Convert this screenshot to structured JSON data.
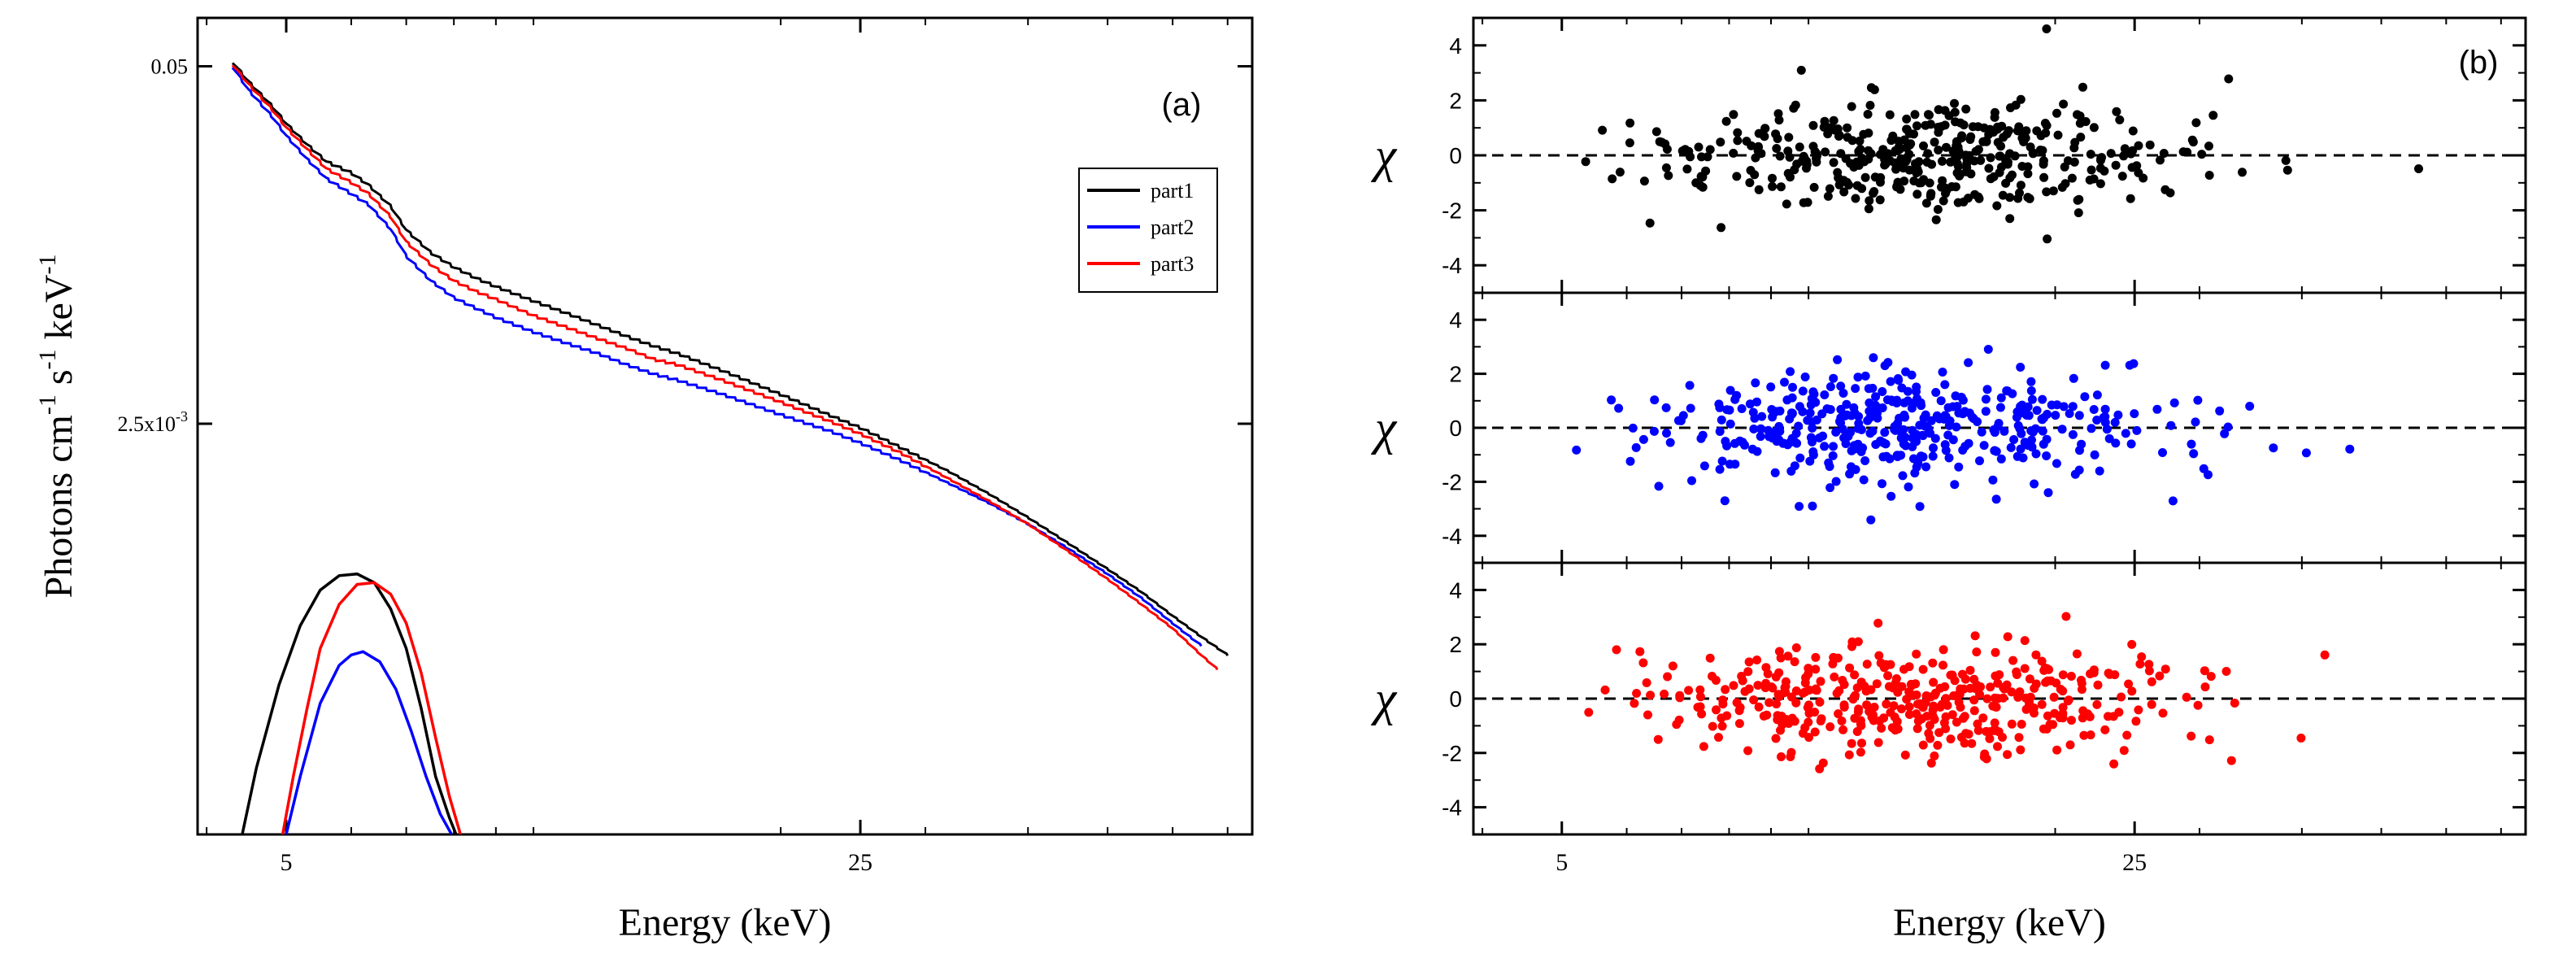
{
  "chart_data": [
    {
      "type": "line",
      "panel_label": "(a)",
      "xlabel": "Energy (keV)",
      "ylabel_parts": [
        "Photons cm",
        "-1",
        " s",
        "-1",
        " keV",
        "-1"
      ],
      "xscale": "log",
      "yscale": "log",
      "xlim": [
        3.9,
        75
      ],
      "ylim": [
        8e-05,
        0.075
      ],
      "xticks": [
        {
          "value": 5,
          "label": "5"
        },
        {
          "value": 25,
          "label": "25"
        }
      ],
      "yticks": [
        {
          "value": 0.05,
          "label": "0.05"
        }
      ],
      "ytick_sci": {
        "value": 0.0025,
        "mantissa": "2.5x10",
        "exponent": "-3"
      },
      "legend": {
        "position": "top-right",
        "entries": [
          {
            "name": "part1",
            "color": "#000000"
          },
          {
            "name": "part2",
            "color": "#0000ff"
          },
          {
            "name": "part3",
            "color": "#ff0000"
          }
        ]
      },
      "series": [
        {
          "name": "part1",
          "component": "total",
          "color": "#000000",
          "x": [
            4.3,
            4.5,
            4.8,
            5.0,
            5.3,
            5.6,
            6.0,
            6.3,
            6.7,
            7.0,
            7.5,
            8.0,
            8.5,
            9.0,
            10,
            11,
            12,
            13,
            14,
            15,
            17,
            20,
            23,
            25,
            28,
            32,
            36,
            40,
            45,
            50,
            55,
            60,
            65,
            70
          ],
          "y": [
            0.052,
            0.044,
            0.036,
            0.031,
            0.026,
            0.0225,
            0.0205,
            0.0185,
            0.0155,
            0.0127,
            0.0105,
            0.0093,
            0.0085,
            0.0079,
            0.007,
            0.0063,
            0.0057,
            0.0052,
            0.0048,
            0.0045,
            0.0039,
            0.0032,
            0.00268,
            0.00242,
            0.00205,
            0.00168,
            0.00138,
            0.00114,
            0.00091,
            0.00074,
            0.00061,
            0.0005,
            0.00042,
            0.00036
          ]
        },
        {
          "name": "part2",
          "component": "total",
          "color": "#0000ff",
          "x": [
            4.3,
            4.5,
            4.8,
            5.0,
            5.3,
            5.6,
            6.0,
            6.3,
            6.7,
            7.0,
            7.5,
            8.0,
            8.5,
            9.0,
            10,
            11,
            12,
            13,
            14,
            15,
            17,
            20,
            23,
            25,
            28,
            32,
            36,
            40,
            45,
            50,
            55,
            60,
            65
          ],
          "y": [
            0.05,
            0.041,
            0.033,
            0.028,
            0.023,
            0.0195,
            0.0172,
            0.0157,
            0.0128,
            0.0102,
            0.0083,
            0.0072,
            0.0066,
            0.0061,
            0.0054,
            0.0049,
            0.0045,
            0.0041,
            0.0038,
            0.0036,
            0.0032,
            0.0027,
            0.00235,
            0.00213,
            0.00184,
            0.00152,
            0.00128,
            0.00108,
            0.00087,
            0.00071,
            0.00058,
            0.00047,
            0.00039
          ]
        },
        {
          "name": "part3",
          "component": "total",
          "color": "#ff0000",
          "x": [
            4.3,
            4.5,
            4.8,
            5.0,
            5.3,
            5.6,
            6.0,
            6.3,
            6.7,
            7.0,
            7.5,
            8.0,
            8.5,
            9.0,
            10,
            11,
            12,
            13,
            14,
            15,
            17,
            20,
            23,
            25,
            28,
            32,
            36,
            40,
            45,
            50,
            55,
            60,
            65,
            68
          ],
          "y": [
            0.051,
            0.043,
            0.035,
            0.03,
            0.025,
            0.0212,
            0.0189,
            0.0172,
            0.0142,
            0.0115,
            0.0095,
            0.0083,
            0.0076,
            0.0071,
            0.0062,
            0.0056,
            0.0051,
            0.0047,
            0.0043,
            0.0041,
            0.0036,
            0.003,
            0.00255,
            0.0023,
            0.00196,
            0.00158,
            0.0013,
            0.00108,
            0.00085,
            0.00068,
            0.00055,
            0.00045,
            0.00036,
            0.00032
          ]
        },
        {
          "name": "part1",
          "component": "gaussian",
          "color": "#000000",
          "x": [
            4.42,
            4.6,
            4.9,
            5.2,
            5.5,
            5.8,
            6.1,
            6.4,
            6.7,
            7.0,
            7.3,
            7.6,
            7.9,
            8.05
          ],
          "y": [
            8e-05,
            0.00014,
            0.00028,
            0.00046,
            0.00062,
            0.0007,
            0.00071,
            0.00066,
            0.00053,
            0.00038,
            0.00023,
            0.00013,
            9.2e-05,
            8e-05
          ]
        },
        {
          "name": "part2",
          "component": "gaussian",
          "color": "#0000ff",
          "x": [
            5.0,
            5.2,
            5.5,
            5.8,
            6.0,
            6.2,
            6.5,
            6.8,
            7.1,
            7.4,
            7.7,
            7.95
          ],
          "y": [
            8e-05,
            0.00013,
            0.00024,
            0.00033,
            0.00036,
            0.00037,
            0.00034,
            0.00027,
            0.00019,
            0.00013,
            9.5e-05,
            8e-05
          ]
        },
        {
          "name": "part3",
          "component": "gaussian",
          "color": "#ff0000",
          "x": [
            4.95,
            5.1,
            5.3,
            5.5,
            5.8,
            6.1,
            6.4,
            6.7,
            7.0,
            7.3,
            7.6,
            7.9,
            8.15
          ],
          "y": [
            8e-05,
            0.00013,
            0.00023,
            0.00038,
            0.00055,
            0.00065,
            0.00066,
            0.0006,
            0.00047,
            0.00031,
            0.00018,
            0.00011,
            8e-05
          ]
        }
      ]
    },
    {
      "type": "scatter",
      "panel_label": "(b)",
      "xlabel": "Energy (keV)",
      "ylabel": "χ",
      "xscale": "log",
      "xlim": [
        3.9,
        75
      ],
      "ylim": [
        -5,
        5
      ],
      "xticks": [
        {
          "value": 5,
          "label": "5"
        },
        {
          "value": 25,
          "label": "25"
        }
      ],
      "yticks": [
        {
          "value": 4,
          "label": "4"
        },
        {
          "value": 2,
          "label": "2"
        },
        {
          "value": 0,
          "label": "0"
        },
        {
          "value": -2,
          "label": "-2"
        },
        {
          "value": -4,
          "label": "-4"
        }
      ],
      "reference_line": {
        "y": 0,
        "style": "dashed"
      },
      "n_points_per_panel": 420,
      "series": [
        {
          "name": "part1",
          "color": "#000000",
          "seed": 11,
          "scatter_sigma": 1.0
        },
        {
          "name": "part2",
          "color": "#0000ff",
          "seed": 23,
          "scatter_sigma": 1.0
        },
        {
          "name": "part3",
          "color": "#ff0000",
          "seed": 37,
          "scatter_sigma": 1.0
        }
      ]
    }
  ]
}
